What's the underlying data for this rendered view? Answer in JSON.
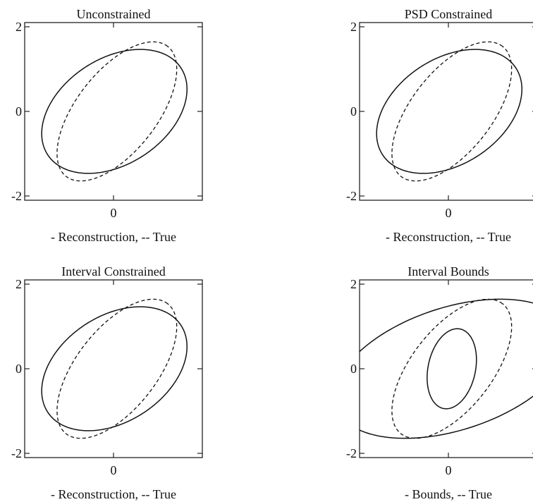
{
  "chart_data": [
    {
      "type": "line",
      "title": "Unconstrained",
      "xlabel": "- Reconstruction, -- True",
      "xticks": [
        0
      ],
      "yticks": [
        2,
        0,
        -2
      ],
      "xlim": [
        -2.1,
        2.1
      ],
      "ylim": [
        -2.1,
        2.1
      ],
      "series": [
        {
          "style": "solid",
          "ellipse": {
            "cx": 0.02,
            "cy": 0.0,
            "rx": 1.88,
            "ry": 1.25,
            "angle_deg": 33
          }
        },
        {
          "style": "dashed",
          "ellipse": {
            "cx": 0.08,
            "cy": 0.0,
            "rx": 1.95,
            "ry": 0.95,
            "angle_deg": 52
          }
        }
      ]
    },
    {
      "type": "line",
      "title": "PSD Constrained",
      "xlabel": "- Reconstruction, -- True",
      "xticks": [
        0
      ],
      "yticks": [
        2,
        0,
        -2
      ],
      "xlim": [
        -2.1,
        2.1
      ],
      "ylim": [
        -2.1,
        2.1
      ],
      "series": [
        {
          "style": "solid",
          "ellipse": {
            "cx": 0.02,
            "cy": 0.0,
            "rx": 1.88,
            "ry": 1.25,
            "angle_deg": 33
          }
        },
        {
          "style": "dashed",
          "ellipse": {
            "cx": 0.08,
            "cy": 0.0,
            "rx": 1.95,
            "ry": 0.95,
            "angle_deg": 52
          }
        }
      ]
    },
    {
      "type": "line",
      "title": "Interval Constrained",
      "xlabel": "- Reconstruction, -- True",
      "xticks": [
        0
      ],
      "yticks": [
        2,
        0,
        -2
      ],
      "xlim": [
        -2.1,
        2.1
      ],
      "ylim": [
        -2.1,
        2.1
      ],
      "series": [
        {
          "style": "solid",
          "ellipse": {
            "cx": 0.02,
            "cy": 0.0,
            "rx": 1.88,
            "ry": 1.25,
            "angle_deg": 33
          }
        },
        {
          "style": "dashed",
          "ellipse": {
            "cx": 0.08,
            "cy": 0.0,
            "rx": 1.95,
            "ry": 0.95,
            "angle_deg": 52
          }
        }
      ]
    },
    {
      "type": "line",
      "title": "Interval Bounds",
      "xlabel": "- Bounds, -- True",
      "xticks": [
        0
      ],
      "yticks": [
        2,
        0,
        -2
      ],
      "xlim": [
        -2.1,
        2.1
      ],
      "ylim": [
        -2.1,
        2.1
      ],
      "series": [
        {
          "style": "solid",
          "ellipse": {
            "cx": 0.1,
            "cy": 0.0,
            "rx": 2.9,
            "ry": 1.45,
            "angle_deg": 18
          }
        },
        {
          "style": "dashed",
          "ellipse": {
            "cx": 0.08,
            "cy": 0.0,
            "rx": 1.95,
            "ry": 0.95,
            "angle_deg": 52
          }
        },
        {
          "style": "solid",
          "ellipse": {
            "cx": 0.08,
            "cy": 0.0,
            "rx": 0.96,
            "ry": 0.56,
            "angle_deg": 78
          }
        }
      ]
    }
  ]
}
